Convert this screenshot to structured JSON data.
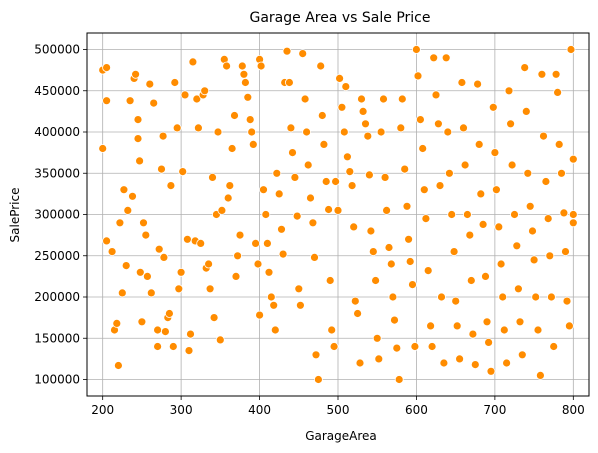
{
  "chart_data": {
    "type": "scatter",
    "title": "Garage Area vs Sale Price",
    "xlabel": "GarageArea",
    "ylabel": "SalePrice",
    "xlim": [
      180,
      820
    ],
    "ylim": [
      80000,
      520000
    ],
    "xticks": [
      200,
      300,
      400,
      500,
      600,
      700,
      800
    ],
    "yticks": [
      100000,
      150000,
      200000,
      250000,
      300000,
      350000,
      400000,
      450000,
      500000
    ],
    "xtick_labels": [
      "200",
      "300",
      "400",
      "500",
      "600",
      "700",
      "800"
    ],
    "ytick_labels": [
      "100000",
      "150000",
      "200000",
      "250000",
      "300000",
      "350000",
      "400000",
      "450000",
      "500000"
    ],
    "grid": true,
    "point_color": "#ff8c00",
    "point_edge_color": "#ffffff",
    "series": [
      {
        "name": "SalePrice",
        "points": [
          [
            200,
            475000
          ],
          [
            205,
            478000
          ],
          [
            205,
            438000
          ],
          [
            200,
            380000
          ],
          [
            205,
            268000
          ],
          [
            212,
            255000
          ],
          [
            215,
            160000
          ],
          [
            218,
            168000
          ],
          [
            220,
            117000
          ],
          [
            225,
            205000
          ],
          [
            222,
            290000
          ],
          [
            227,
            330000
          ],
          [
            230,
            238000
          ],
          [
            232,
            305000
          ],
          [
            235,
            438000
          ],
          [
            238,
            322000
          ],
          [
            240,
            465000
          ],
          [
            242,
            470000
          ],
          [
            245,
            392000
          ],
          [
            245,
            415000
          ],
          [
            247,
            365000
          ],
          [
            248,
            230000
          ],
          [
            250,
            170000
          ],
          [
            252,
            290000
          ],
          [
            255,
            275000
          ],
          [
            257,
            225000
          ],
          [
            260,
            458000
          ],
          [
            262,
            205000
          ],
          [
            265,
            435000
          ],
          [
            270,
            140000
          ],
          [
            270,
            160000
          ],
          [
            272,
            258000
          ],
          [
            275,
            355000
          ],
          [
            277,
            395000
          ],
          [
            278,
            248000
          ],
          [
            280,
            158000
          ],
          [
            283,
            175000
          ],
          [
            285,
            180000
          ],
          [
            287,
            335000
          ],
          [
            290,
            140000
          ],
          [
            292,
            460000
          ],
          [
            295,
            405000
          ],
          [
            297,
            210000
          ],
          [
            300,
            230000
          ],
          [
            302,
            352000
          ],
          [
            305,
            445000
          ],
          [
            308,
            270000
          ],
          [
            310,
            135000
          ],
          [
            312,
            155000
          ],
          [
            315,
            485000
          ],
          [
            318,
            268000
          ],
          [
            320,
            440000
          ],
          [
            322,
            405000
          ],
          [
            325,
            265000
          ],
          [
            328,
            445000
          ],
          [
            330,
            450000
          ],
          [
            332,
            235000
          ],
          [
            335,
            240000
          ],
          [
            337,
            210000
          ],
          [
            340,
            345000
          ],
          [
            342,
            175000
          ],
          [
            345,
            300000
          ],
          [
            347,
            400000
          ],
          [
            350,
            148000
          ],
          [
            352,
            305000
          ],
          [
            355,
            488000
          ],
          [
            358,
            480000
          ],
          [
            360,
            320000
          ],
          [
            362,
            335000
          ],
          [
            365,
            380000
          ],
          [
            368,
            420000
          ],
          [
            370,
            225000
          ],
          [
            372,
            250000
          ],
          [
            375,
            275000
          ],
          [
            378,
            480000
          ],
          [
            380,
            470000
          ],
          [
            382,
            460000
          ],
          [
            385,
            442000
          ],
          [
            388,
            415000
          ],
          [
            390,
            400000
          ],
          [
            392,
            385000
          ],
          [
            395,
            265000
          ],
          [
            398,
            240000
          ],
          [
            400,
            178000
          ],
          [
            400,
            488000
          ],
          [
            402,
            480000
          ],
          [
            405,
            330000
          ],
          [
            408,
            300000
          ],
          [
            410,
            265000
          ],
          [
            412,
            230000
          ],
          [
            415,
            200000
          ],
          [
            418,
            190000
          ],
          [
            420,
            160000
          ],
          [
            422,
            350000
          ],
          [
            425,
            325000
          ],
          [
            428,
            282000
          ],
          [
            430,
            252000
          ],
          [
            432,
            460000
          ],
          [
            435,
            498000
          ],
          [
            438,
            460000
          ],
          [
            440,
            405000
          ],
          [
            442,
            375000
          ],
          [
            445,
            345000
          ],
          [
            448,
            298000
          ],
          [
            450,
            210000
          ],
          [
            452,
            190000
          ],
          [
            455,
            495000
          ],
          [
            458,
            440000
          ],
          [
            460,
            400000
          ],
          [
            462,
            360000
          ],
          [
            465,
            320000
          ],
          [
            468,
            290000
          ],
          [
            470,
            248000
          ],
          [
            472,
            130000
          ],
          [
            475,
            100000
          ],
          [
            478,
            480000
          ],
          [
            480,
            420000
          ],
          [
            482,
            385000
          ],
          [
            485,
            340000
          ],
          [
            488,
            306000
          ],
          [
            490,
            220000
          ],
          [
            492,
            160000
          ],
          [
            495,
            140000
          ],
          [
            497,
            340000
          ],
          [
            500,
            305000
          ],
          [
            502,
            465000
          ],
          [
            505,
            430000
          ],
          [
            508,
            400000
          ],
          [
            510,
            455000
          ],
          [
            512,
            370000
          ],
          [
            515,
            352000
          ],
          [
            518,
            335000
          ],
          [
            520,
            285000
          ],
          [
            522,
            195000
          ],
          [
            525,
            180000
          ],
          [
            528,
            120000
          ],
          [
            530,
            440000
          ],
          [
            532,
            425000
          ],
          [
            535,
            410000
          ],
          [
            538,
            395000
          ],
          [
            540,
            348000
          ],
          [
            542,
            280000
          ],
          [
            545,
            255000
          ],
          [
            548,
            220000
          ],
          [
            550,
            150000
          ],
          [
            552,
            125000
          ],
          [
            555,
            400000
          ],
          [
            558,
            440000
          ],
          [
            560,
            345000
          ],
          [
            562,
            305000
          ],
          [
            565,
            260000
          ],
          [
            568,
            240000
          ],
          [
            570,
            200000
          ],
          [
            572,
            172000
          ],
          [
            575,
            138000
          ],
          [
            578,
            100000
          ],
          [
            580,
            405000
          ],
          [
            582,
            440000
          ],
          [
            585,
            355000
          ],
          [
            588,
            310000
          ],
          [
            590,
            270000
          ],
          [
            592,
            243000
          ],
          [
            595,
            215000
          ],
          [
            598,
            140000
          ],
          [
            600,
            500000
          ],
          [
            602,
            468000
          ],
          [
            605,
            415000
          ],
          [
            608,
            380000
          ],
          [
            610,
            330000
          ],
          [
            612,
            295000
          ],
          [
            615,
            232000
          ],
          [
            618,
            165000
          ],
          [
            620,
            140000
          ],
          [
            622,
            490000
          ],
          [
            625,
            445000
          ],
          [
            628,
            410000
          ],
          [
            630,
            335000
          ],
          [
            632,
            200000
          ],
          [
            635,
            120000
          ],
          [
            638,
            490000
          ],
          [
            640,
            400000
          ],
          [
            642,
            350000
          ],
          [
            645,
            300000
          ],
          [
            648,
            255000
          ],
          [
            650,
            195000
          ],
          [
            652,
            165000
          ],
          [
            655,
            125000
          ],
          [
            658,
            460000
          ],
          [
            660,
            405000
          ],
          [
            662,
            360000
          ],
          [
            665,
            300000
          ],
          [
            668,
            275000
          ],
          [
            670,
            220000
          ],
          [
            672,
            155000
          ],
          [
            675,
            118000
          ],
          [
            678,
            458000
          ],
          [
            680,
            385000
          ],
          [
            682,
            325000
          ],
          [
            685,
            288000
          ],
          [
            688,
            225000
          ],
          [
            690,
            170000
          ],
          [
            692,
            145000
          ],
          [
            695,
            110000
          ],
          [
            698,
            430000
          ],
          [
            700,
            375000
          ],
          [
            702,
            330000
          ],
          [
            705,
            285000
          ],
          [
            708,
            240000
          ],
          [
            710,
            200000
          ],
          [
            712,
            160000
          ],
          [
            715,
            120000
          ],
          [
            718,
            450000
          ],
          [
            720,
            410000
          ],
          [
            722,
            360000
          ],
          [
            725,
            300000
          ],
          [
            728,
            262000
          ],
          [
            730,
            210000
          ],
          [
            732,
            170000
          ],
          [
            735,
            130000
          ],
          [
            738,
            478000
          ],
          [
            740,
            425000
          ],
          [
            742,
            350000
          ],
          [
            745,
            310000
          ],
          [
            748,
            280000
          ],
          [
            750,
            245000
          ],
          [
            752,
            200000
          ],
          [
            755,
            160000
          ],
          [
            758,
            105000
          ],
          [
            760,
            470000
          ],
          [
            762,
            395000
          ],
          [
            765,
            340000
          ],
          [
            768,
            295000
          ],
          [
            770,
            250000
          ],
          [
            772,
            200000
          ],
          [
            775,
            140000
          ],
          [
            778,
            470000
          ],
          [
            780,
            448000
          ],
          [
            782,
            385000
          ],
          [
            785,
            350000
          ],
          [
            788,
            302000
          ],
          [
            790,
            255000
          ],
          [
            792,
            195000
          ],
          [
            795,
            165000
          ],
          [
            797,
            500000
          ],
          [
            800,
            367000
          ],
          [
            800,
            300000
          ],
          [
            800,
            290000
          ]
        ]
      }
    ]
  }
}
